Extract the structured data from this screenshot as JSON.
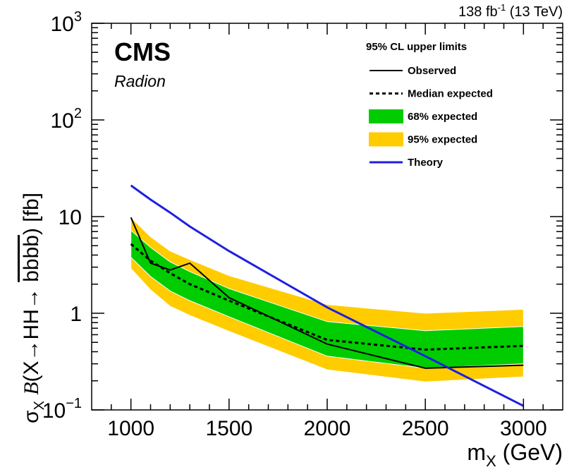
{
  "chart_data": {
    "type": "line",
    "title": "",
    "experiment": "CMS",
    "model": "Radion",
    "lumi_label": "138 fb",
    "lumi_exponent": "-1",
    "energy_label": "(13 TeV)",
    "xlabel_main": "m",
    "xlabel_sub": "X",
    "xlabel_unit": "(GeV)",
    "ylabel": {
      "sigma": "σ",
      "sigma_sub": "X",
      "b": "B",
      "open": "(X",
      "arrow1": "→",
      "hh": "HH",
      "arrow2": "→",
      "bbbb": "bbbb",
      "close": ")",
      "unit": "[fb]"
    },
    "xlim": [
      800,
      3200
    ],
    "ylim": [
      0.1,
      1000
    ],
    "yscale": "log",
    "x_ticks": [
      "1000",
      "1500",
      "2000",
      "2500",
      "3000"
    ],
    "x_tick_values": [
      1000,
      1500,
      2000,
      2500,
      3000
    ],
    "y_tick_labels": [
      {
        "base": "10",
        "exp": "−1",
        "value": 0.1
      },
      {
        "base": "1",
        "exp": "",
        "value": 1
      },
      {
        "base": "10",
        "exp": "",
        "value": 10
      },
      {
        "base": "10",
        "exp": "2",
        "value": 100
      },
      {
        "base": "10",
        "exp": "3",
        "value": 1000
      }
    ],
    "legend_title": "95% CL upper limits",
    "legend_position": "top-right",
    "series": [
      {
        "name": "Observed",
        "style": "solid",
        "color": "#000000",
        "x": [
          1000,
          1100,
          1200,
          1300,
          1500,
          2000,
          2500,
          3000
        ],
        "y": [
          9.8,
          3.3,
          2.8,
          3.3,
          1.45,
          0.48,
          0.27,
          0.29
        ]
      },
      {
        "name": "Median expected",
        "style": "dashed",
        "color": "#000000",
        "x": [
          1000,
          1100,
          1200,
          1300,
          1500,
          2000,
          2500,
          3000
        ],
        "y": [
          5.2,
          3.5,
          2.6,
          2.0,
          1.35,
          0.53,
          0.42,
          0.46
        ]
      },
      {
        "name": "Theory",
        "style": "solid",
        "color": "#1f1fe0",
        "x": [
          1000,
          1100,
          1200,
          1300,
          1500,
          2000,
          2500,
          3000
        ],
        "y": [
          21,
          15,
          11,
          7.9,
          4.4,
          1.15,
          0.36,
          0.11
        ]
      }
    ],
    "bands": [
      {
        "name": "95% expected",
        "color": "#ffcc00",
        "x": [
          1000,
          1100,
          1200,
          1300,
          1500,
          2000,
          2500,
          3000
        ],
        "low": [
          2.9,
          1.75,
          1.18,
          0.95,
          0.65,
          0.26,
          0.195,
          0.22
        ],
        "high": [
          9.8,
          6.2,
          4.4,
          3.6,
          2.45,
          1.23,
          1.0,
          1.1
        ]
      },
      {
        "name": "68% expected",
        "color": "#00cc00",
        "x": [
          1000,
          1100,
          1200,
          1300,
          1500,
          2000,
          2500,
          3000
        ],
        "low": [
          3.8,
          2.4,
          1.7,
          1.35,
          0.92,
          0.36,
          0.27,
          0.3
        ],
        "high": [
          7.2,
          4.8,
          3.4,
          2.7,
          1.8,
          0.82,
          0.66,
          0.73
        ]
      }
    ],
    "legend": [
      {
        "label": "Observed",
        "kind": "line",
        "color": "#000000",
        "style": "solid"
      },
      {
        "label": "Median expected",
        "kind": "line",
        "color": "#000000",
        "style": "dashed"
      },
      {
        "label": "68% expected",
        "kind": "box",
        "color": "#00cc00"
      },
      {
        "label": "95% expected",
        "kind": "box",
        "color": "#ffcc00"
      },
      {
        "label": "Theory",
        "kind": "line",
        "color": "#1f1fe0",
        "style": "solid"
      }
    ]
  }
}
